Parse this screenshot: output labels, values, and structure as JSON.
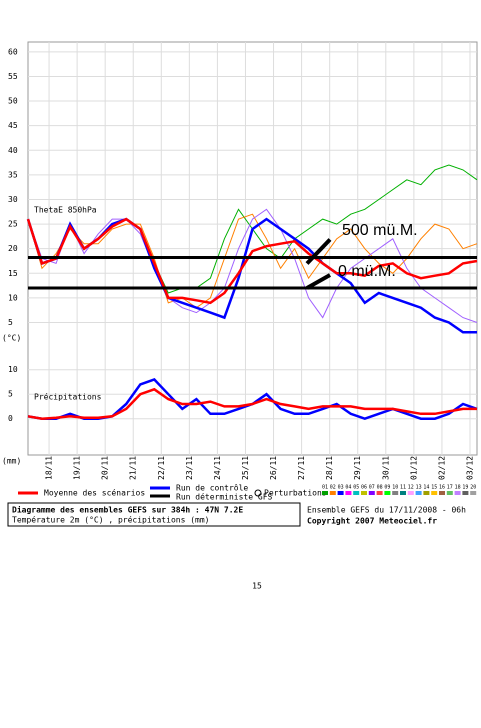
{
  "chart_data": [
    {
      "type": "line",
      "label": "ThetaE 850hPa",
      "ylabel": "(°C)",
      "ylim": [
        -1,
        62
      ],
      "yticks": [
        5,
        10,
        15,
        20,
        25,
        30,
        35,
        40,
        45,
        50,
        55,
        60
      ],
      "xlim": [
        0,
        384
      ],
      "xticks": [
        {
          "value": 18,
          "label": "18/11"
        },
        {
          "value": 42,
          "label": "19/11"
        },
        {
          "value": 66,
          "label": "20/11"
        },
        {
          "value": 90,
          "label": "21/11"
        },
        {
          "value": 114,
          "label": "22/11"
        },
        {
          "value": 138,
          "label": "23/11"
        },
        {
          "value": 162,
          "label": "24/11"
        },
        {
          "value": 186,
          "label": "25/11"
        },
        {
          "value": 210,
          "label": "26/11"
        },
        {
          "value": 234,
          "label": "27/11"
        },
        {
          "value": 258,
          "label": "28/11"
        },
        {
          "value": 282,
          "label": "29/11"
        },
        {
          "value": 306,
          "label": "30/11"
        },
        {
          "value": 330,
          "label": "01/12"
        },
        {
          "value": 354,
          "label": "02/12"
        },
        {
          "value": 378,
          "label": "03/12"
        }
      ],
      "grid": true,
      "x": [
        0,
        12,
        24,
        36,
        48,
        60,
        72,
        84,
        96,
        108,
        120,
        132,
        144,
        156,
        168,
        180,
        192,
        204,
        216,
        228,
        240,
        252,
        264,
        276,
        288,
        300,
        312,
        324,
        336,
        348,
        360,
        372,
        384
      ],
      "series": [
        {
          "color": "#00b000",
          "values": [
            26,
            17,
            18,
            25,
            20,
            22,
            25,
            26,
            24,
            17,
            11,
            12,
            12,
            14,
            22,
            28,
            24,
            20,
            18,
            22,
            24,
            26,
            25,
            27,
            28,
            30,
            32,
            34,
            33,
            36,
            37,
            36,
            34
          ]
        },
        {
          "color": "#ff8000",
          "values": [
            26,
            16,
            19,
            24,
            21,
            21,
            24,
            25,
            25,
            18,
            9,
            10,
            8,
            10,
            18,
            26,
            27,
            22,
            16,
            20,
            14,
            18,
            22,
            24,
            20,
            17,
            15,
            18,
            22,
            25,
            24,
            20,
            21
          ]
        },
        {
          "color": "#a060ff",
          "values": [
            26,
            18,
            17,
            25,
            19,
            23,
            26,
            26,
            23,
            16,
            10,
            8,
            7,
            9,
            12,
            20,
            26,
            28,
            24,
            18,
            10,
            6,
            12,
            16,
            18,
            20,
            22,
            16,
            12,
            10,
            8,
            6,
            5
          ]
        },
        {
          "name": "Run de contrôle",
          "color": "#0000ff",
          "values": [
            26,
            17,
            18,
            25,
            20,
            22,
            25,
            26,
            24,
            16,
            10,
            9,
            8,
            7,
            6,
            14,
            24,
            26,
            24,
            22,
            20,
            17,
            15,
            13,
            9,
            11,
            10,
            9,
            8,
            6,
            5,
            3,
            3
          ]
        },
        {
          "name": "Moyenne des scénarios",
          "color": "#ff0000",
          "values": [
            26,
            17,
            18,
            24.5,
            20,
            22,
            24.5,
            26,
            24,
            17,
            10,
            10,
            9.5,
            9,
            11,
            15,
            19.5,
            20.5,
            21,
            21.5,
            19,
            17,
            15,
            15,
            14.5,
            16.5,
            17,
            15,
            14,
            14.5,
            15,
            17,
            17.5
          ]
        }
      ],
      "annotations": [
        {
          "text": "500 mü.M.",
          "value": 18.2
        },
        {
          "text": "0 mü.M.",
          "value": 12
        }
      ]
    },
    {
      "type": "line",
      "label": "Précipitations",
      "ylabel": "(mm)",
      "ylim": [
        -7,
        13
      ],
      "yticks": [
        0,
        5,
        10
      ],
      "xlim": [
        0,
        384
      ],
      "grid": true,
      "x": [
        0,
        12,
        24,
        36,
        48,
        60,
        72,
        84,
        96,
        108,
        120,
        132,
        144,
        156,
        168,
        180,
        192,
        204,
        216,
        228,
        240,
        252,
        264,
        276,
        288,
        300,
        312,
        324,
        336,
        348,
        360,
        372,
        384
      ],
      "series": [
        {
          "color": "#0000ff",
          "values": [
            0.5,
            0,
            0,
            1,
            0,
            0,
            0.5,
            3,
            7,
            8,
            5,
            2,
            4,
            1,
            1,
            2,
            3,
            5,
            2,
            1,
            1,
            2,
            3,
            1,
            0,
            1,
            2,
            1,
            0,
            0,
            1,
            3,
            2
          ]
        },
        {
          "color": "#ff0000",
          "values": [
            0.5,
            0,
            0.2,
            0.5,
            0.2,
            0.2,
            0.5,
            2,
            5,
            6,
            4,
            3,
            3,
            3.5,
            2.5,
            2.5,
            3,
            4,
            3,
            2.5,
            2,
            2.5,
            2.5,
            2.5,
            2,
            2,
            2,
            1.5,
            1,
            1,
            1.5,
            2,
            2
          ]
        }
      ]
    }
  ],
  "legend": {
    "deterministic": "Run déterministe GFS",
    "perturbations": "Perturbations",
    "members": [
      {
        "label": "01",
        "color": "#00a000"
      },
      {
        "label": "02",
        "color": "#ff8000"
      },
      {
        "label": "03",
        "color": "#0000ff"
      },
      {
        "label": "04",
        "color": "#ff00ff"
      },
      {
        "label": "05",
        "color": "#00c0c0"
      },
      {
        "label": "06",
        "color": "#c0c000"
      },
      {
        "label": "07",
        "color": "#8000ff"
      },
      {
        "label": "08",
        "color": "#ff4040"
      },
      {
        "label": "09",
        "color": "#00ff00"
      },
      {
        "label": "10",
        "color": "#808080"
      },
      {
        "label": "11",
        "color": "#008080"
      },
      {
        "label": "12",
        "color": "#ffa0ff"
      },
      {
        "label": "13",
        "color": "#40a0ff"
      },
      {
        "label": "14",
        "color": "#a0a000"
      },
      {
        "label": "15",
        "color": "#ffc000"
      },
      {
        "label": "16",
        "color": "#a06040"
      },
      {
        "label": "17",
        "color": "#60c060"
      },
      {
        "label": "18",
        "color": "#c080ff"
      },
      {
        "label": "19",
        "color": "#606060"
      },
      {
        "label": "20",
        "color": "#a0a0a0"
      }
    ]
  },
  "info": {
    "title": "Diagramme des ensembles GEFS sur 384h : 47N 7.2E",
    "subtitle": "Température 2m (°C) , précipitations (mm)",
    "run": "Ensemble GEFS du 17/11/2008 - 06h",
    "copyright": "Copyright 2007 Meteociel.fr"
  },
  "page_number": "15"
}
